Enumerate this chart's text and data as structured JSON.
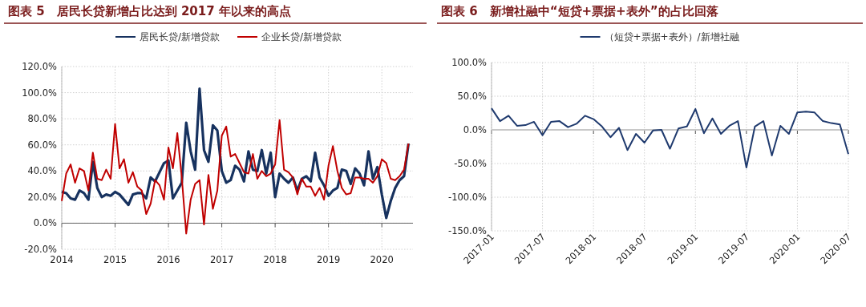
{
  "chart_data": [
    {
      "type": "line",
      "title": "图表 5　居民长贷新增占比达到 2017 年以来的高点",
      "x": [
        "2014-01",
        "2014-02",
        "2014-03",
        "2014-04",
        "2014-05",
        "2014-06",
        "2014-07",
        "2014-08",
        "2014-09",
        "2014-10",
        "2014-11",
        "2014-12",
        "2015-01",
        "2015-02",
        "2015-03",
        "2015-04",
        "2015-05",
        "2015-06",
        "2015-07",
        "2015-08",
        "2015-09",
        "2015-10",
        "2015-11",
        "2015-12",
        "2016-01",
        "2016-02",
        "2016-03",
        "2016-04",
        "2016-05",
        "2016-06",
        "2016-07",
        "2016-08",
        "2016-09",
        "2016-10",
        "2016-11",
        "2016-12",
        "2017-01",
        "2017-02",
        "2017-03",
        "2017-04",
        "2017-05",
        "2017-06",
        "2017-07",
        "2017-08",
        "2017-09",
        "2017-10",
        "2017-11",
        "2017-12",
        "2018-01",
        "2018-02",
        "2018-03",
        "2018-04",
        "2018-05",
        "2018-06",
        "2018-07",
        "2018-08",
        "2018-09",
        "2018-10",
        "2018-11",
        "2018-12",
        "2019-01",
        "2019-02",
        "2019-03",
        "2019-04",
        "2019-05",
        "2019-06",
        "2019-07",
        "2019-08",
        "2019-09",
        "2019-10",
        "2019-11",
        "2019-12",
        "2020-01",
        "2020-02",
        "2020-03",
        "2020-04",
        "2020-05",
        "2020-06",
        "2020-07"
      ],
      "series": [
        {
          "name": "居民长贷/新增贷款",
          "color": "#17325f",
          "values": [
            24,
            23,
            19,
            18,
            25,
            23,
            18,
            47,
            27,
            20,
            22,
            21,
            24,
            22,
            18,
            14,
            22,
            23,
            23,
            19,
            35,
            32,
            39,
            46,
            48,
            19,
            25,
            31,
            77,
            55,
            41,
            103,
            56,
            47,
            75,
            71,
            40,
            31,
            33,
            44,
            41,
            32,
            55,
            41,
            40,
            56,
            38,
            54,
            20,
            38,
            34,
            31,
            35,
            25,
            34,
            36,
            32,
            54,
            35,
            29,
            21,
            25,
            27,
            41,
            40,
            30,
            42,
            38,
            29,
            55,
            34,
            43,
            22,
            4,
            17,
            27,
            33,
            36,
            61
          ]
        },
        {
          "name": "企业长贷/新增贷款",
          "color": "#c00000",
          "values": [
            17,
            38,
            45,
            31,
            42,
            40,
            25,
            54,
            34,
            33,
            41,
            34,
            76,
            42,
            49,
            31,
            39,
            28,
            25,
            7,
            15,
            33,
            29,
            18,
            58,
            42,
            69,
            35,
            -8,
            18,
            30,
            33,
            -1,
            37,
            11,
            25,
            67,
            74,
            51,
            53,
            46,
            39,
            38,
            53,
            34,
            40,
            36,
            38,
            45,
            79,
            41,
            39,
            35,
            22,
            34,
            28,
            28,
            21,
            27,
            18,
            44,
            59,
            40,
            27,
            22,
            23,
            35,
            35,
            34,
            34,
            31,
            36,
            49,
            46,
            34,
            33,
            36,
            41,
            61
          ]
        }
      ],
      "xlim": [
        "2014-01",
        "2020-08"
      ],
      "xticks": [
        "2014",
        "2015",
        "2016",
        "2017",
        "2018",
        "2019",
        "2020"
      ],
      "ylim": [
        -20,
        120
      ],
      "yticks": [
        {
          "value": -20,
          "label": "-20.0%"
        },
        {
          "value": 0,
          "label": "0.0%"
        },
        {
          "value": 20,
          "label": "20.0%"
        },
        {
          "value": 40,
          "label": "40.0%"
        },
        {
          "value": 60,
          "label": "60.0%"
        },
        {
          "value": 80,
          "label": "80.0%"
        },
        {
          "value": 100,
          "label": "100.0%"
        },
        {
          "value": 120,
          "label": "120.0%"
        }
      ],
      "grid": true,
      "legend": "top",
      "line_style": "solid"
    },
    {
      "type": "line",
      "title": "图表 6　新增社融中“短贷+票据+表外”的占比回落",
      "x": [
        "2017-01",
        "2017-02",
        "2017-03",
        "2017-04",
        "2017-05",
        "2017-06",
        "2017-07",
        "2017-08",
        "2017-09",
        "2017-10",
        "2017-11",
        "2017-12",
        "2018-01",
        "2018-02",
        "2018-03",
        "2018-04",
        "2018-05",
        "2018-06",
        "2018-07",
        "2018-08",
        "2018-09",
        "2018-10",
        "2018-11",
        "2018-12",
        "2019-01",
        "2019-02",
        "2019-03",
        "2019-04",
        "2019-05",
        "2019-06",
        "2019-07",
        "2019-08",
        "2019-09",
        "2019-10",
        "2019-11",
        "2019-12",
        "2020-01",
        "2020-02",
        "2020-03",
        "2020-04",
        "2020-05",
        "2020-06",
        "2020-07"
      ],
      "series": [
        {
          "name": "（短贷+票据+表外）/新增社融",
          "color": "#1f3a6e",
          "values": [
            32,
            13,
            21,
            6,
            7,
            12,
            -8,
            12,
            13,
            4,
            9,
            21,
            16,
            5,
            -11,
            3,
            -30,
            -6,
            -19,
            -1,
            0,
            -28,
            2,
            5,
            31,
            -5,
            17,
            -6,
            6,
            13,
            -56,
            5,
            13,
            -38,
            6,
            -6,
            26,
            27,
            26,
            13,
            10,
            8,
            -36
          ]
        }
      ],
      "xlim": [
        "2017-01",
        "2020-07"
      ],
      "xticks": [
        "2017-01",
        "2017-07",
        "2018-01",
        "2018-07",
        "2019-01",
        "2019-07",
        "2020-01",
        "2020-07"
      ],
      "ylim": [
        -150,
        100
      ],
      "yticks": [
        {
          "value": -150,
          "label": "-150.0%"
        },
        {
          "value": -100,
          "label": "-100.0%"
        },
        {
          "value": -50,
          "label": "-50.0%"
        },
        {
          "value": 0,
          "label": "0.0%"
        },
        {
          "value": 50,
          "label": "50.0%"
        },
        {
          "value": 100,
          "label": "100.0%"
        }
      ],
      "grid": true,
      "legend": "top",
      "line_style": "solid"
    }
  ]
}
